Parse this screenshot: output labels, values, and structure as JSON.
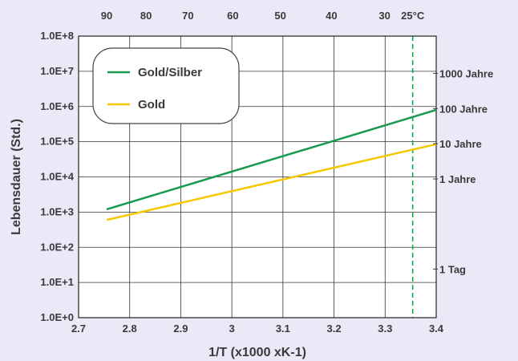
{
  "chart_data": {
    "type": "line",
    "title": "",
    "xlabel": "1/T (x1000 xK-1)",
    "ylabel": "Lebensdauer (Std.)",
    "xlim": [
      2.7,
      3.4
    ],
    "ylim": [
      1,
      100000000
    ],
    "y_scale": "log",
    "x_ticks": [
      "2.7",
      "2.8",
      "2.9",
      "3",
      "3.1",
      "3.2",
      "3.3",
      "3.4"
    ],
    "y_ticks": [
      "1.0E+0",
      "1.0E+1",
      "1.0E+2",
      "1.0E+3",
      "1.0E+4",
      "1.0E+5",
      "1.0E+6",
      "1.0E+7",
      "1.0E+8"
    ],
    "top_axis": {
      "ticks": [
        {
          "label": "90",
          "x": 2.755
        },
        {
          "label": "80",
          "x": 2.832
        },
        {
          "label": "70",
          "x": 2.914
        },
        {
          "label": "60",
          "x": 3.002
        },
        {
          "label": "50",
          "x": 3.095
        },
        {
          "label": "40",
          "x": 3.195
        },
        {
          "label": "30",
          "x": 3.299
        },
        {
          "label": "25°C",
          "x": 3.354
        }
      ]
    },
    "grid": true,
    "legend": {
      "placement": "top-left"
    },
    "series": [
      {
        "name": "Gold/Silber",
        "color": "#1a9a50",
        "x": [
          2.755,
          3.4
        ],
        "y": [
          1200,
          800000
        ]
      },
      {
        "name": "Gold",
        "color": "#f5c800",
        "x": [
          2.755,
          3.4
        ],
        "y": [
          600,
          85000
        ]
      }
    ],
    "reference_line": {
      "x": 3.354,
      "color": "#1a9a50",
      "style": "dashed"
    },
    "right_annotations": [
      {
        "label": "1000 Jahre",
        "y": 8760000
      },
      {
        "label": "100 Jahre",
        "y": 876000
      },
      {
        "label": "10 Jahre",
        "y": 87600
      },
      {
        "label": "1 Jahre",
        "y": 8760
      },
      {
        "label": "1 Tag",
        "y": 24
      }
    ]
  }
}
